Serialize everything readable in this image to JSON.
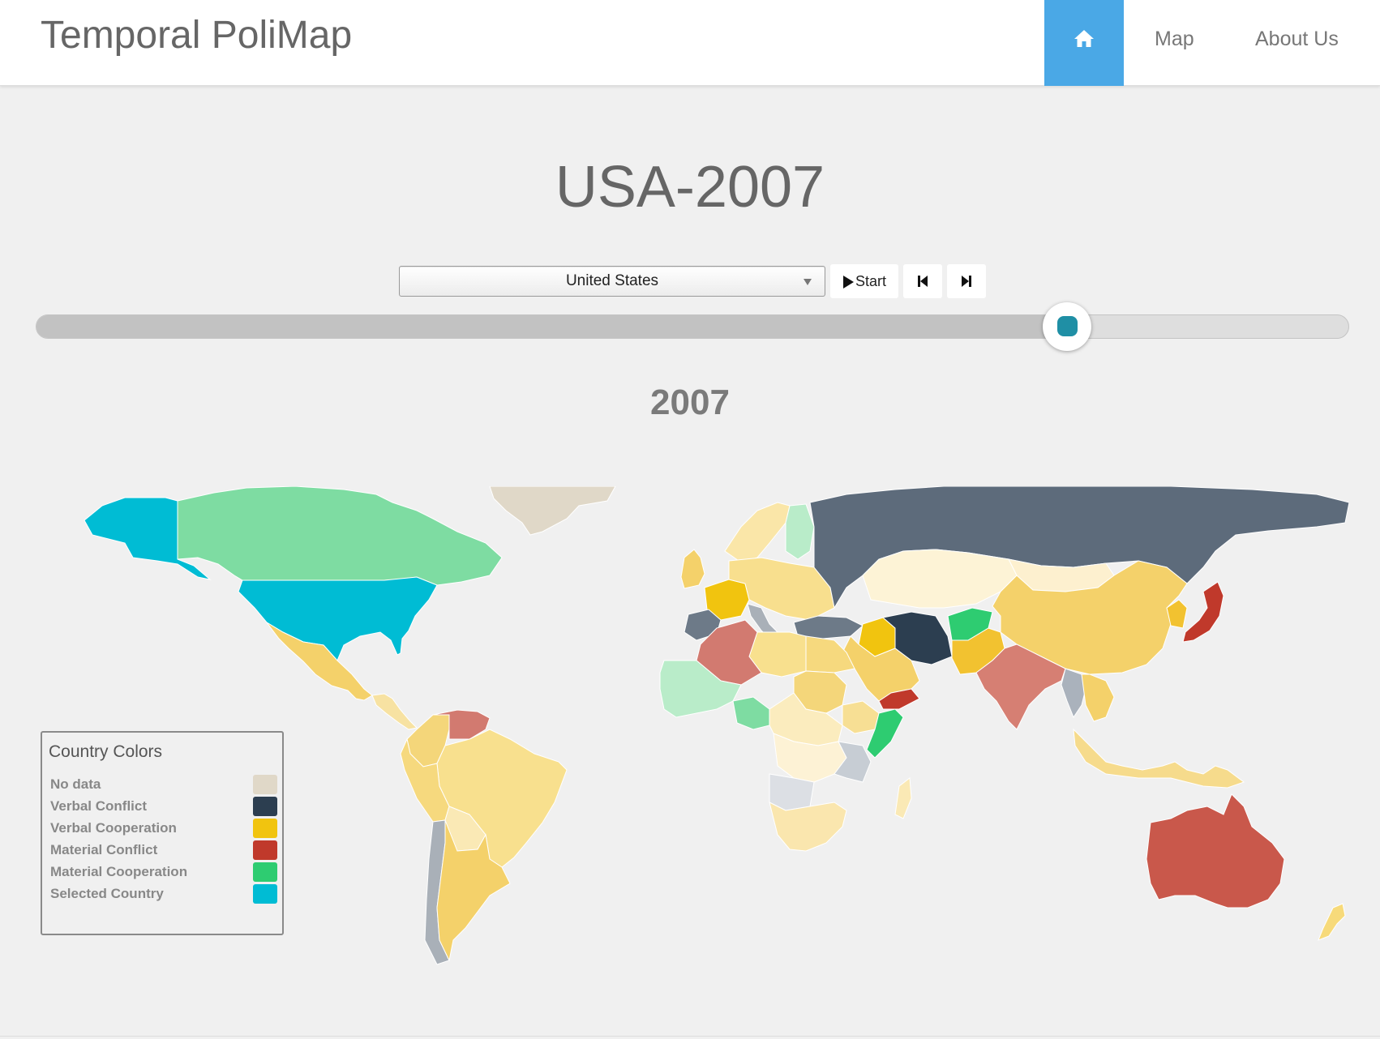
{
  "app": {
    "brand": "Temporal PoliMap",
    "nav": {
      "home_icon": "home-icon",
      "map": "Map",
      "about": "About Us"
    }
  },
  "header": {
    "title": "USA-2007"
  },
  "controls": {
    "country_select": {
      "selected": "United States"
    },
    "start_label": "Start",
    "prev_icon": "step-back-icon",
    "next_icon": "step-forward-icon",
    "timeline_progress": 0.785
  },
  "year": "2007",
  "legend": {
    "title": "Country Colors",
    "items": [
      {
        "label": "No data",
        "color": "#e0d8c8"
      },
      {
        "label": "Verbal Conflict",
        "color": "#2c3e50"
      },
      {
        "label": "Verbal Cooperation",
        "color": "#f1c40f"
      },
      {
        "label": "Material Conflict",
        "color": "#c0392b"
      },
      {
        "label": "Material Cooperation",
        "color": "#2ecc71"
      },
      {
        "label": "Selected Country",
        "color": "#00bcd4"
      }
    ]
  },
  "map": {
    "regions": [
      {
        "name": "United States",
        "category": "Selected Country",
        "color": "#00bcd4"
      },
      {
        "name": "Alaska",
        "category": "Selected Country",
        "color": "#00bcd4"
      },
      {
        "name": "Canada",
        "category": "Material Cooperation",
        "color": "#7edca2"
      },
      {
        "name": "Greenland",
        "category": "No data",
        "color": "#e0d8c8"
      },
      {
        "name": "Mexico",
        "category": "Verbal Cooperation",
        "color": "#f4d16a"
      },
      {
        "name": "Central America",
        "category": "Verbal Cooperation",
        "color": "#f7e2a2"
      },
      {
        "name": "Venezuela",
        "category": "Material Conflict",
        "color": "#d27a70"
      },
      {
        "name": "Colombia",
        "category": "Verbal Cooperation",
        "color": "#f4d67a"
      },
      {
        "name": "Brazil",
        "category": "Verbal Cooperation",
        "color": "#f8e08e"
      },
      {
        "name": "Peru",
        "category": "Verbal Cooperation",
        "color": "#f6d97e"
      },
      {
        "name": "Bolivia",
        "category": "Verbal Cooperation",
        "color": "#fae9b5"
      },
      {
        "name": "Chile",
        "category": "Verbal Conflict",
        "color": "#a9b0b8"
      },
      {
        "name": "Argentina",
        "category": "Verbal Cooperation",
        "color": "#f4d16a"
      },
      {
        "name": "Russia",
        "category": "Verbal Conflict",
        "color": "#5d6b7b"
      },
      {
        "name": "China",
        "category": "Verbal Cooperation",
        "color": "#f4d16a"
      },
      {
        "name": "Mongolia",
        "category": "Verbal Cooperation",
        "color": "#fdf0cf"
      },
      {
        "name": "Kazakhstan",
        "category": "Verbal Cooperation",
        "color": "#fdf3d6"
      },
      {
        "name": "Iran",
        "category": "Verbal Conflict",
        "color": "#2c3e50"
      },
      {
        "name": "Afghanistan",
        "category": "Material Cooperation",
        "color": "#2ecc71"
      },
      {
        "name": "Pakistan",
        "category": "Verbal Cooperation",
        "color": "#f2c230"
      },
      {
        "name": "India",
        "category": "Material Conflict",
        "color": "#d67f73"
      },
      {
        "name": "Myanmar",
        "category": "Verbal Conflict",
        "color": "#aab2bc"
      },
      {
        "name": "Southeast Asia",
        "category": "Verbal Cooperation",
        "color": "#f4d16a"
      },
      {
        "name": "Indonesia",
        "category": "Verbal Cooperation",
        "color": "#f6db8c"
      },
      {
        "name": "Japan",
        "category": "Material Conflict",
        "color": "#c0392b"
      },
      {
        "name": "Korea",
        "category": "Verbal Cooperation",
        "color": "#f2c230"
      },
      {
        "name": "Australia",
        "category": "Material Conflict",
        "color": "#c9584b"
      },
      {
        "name": "New Zealand",
        "category": "Verbal Cooperation",
        "color": "#f7da7a"
      },
      {
        "name": "Saudi Arabia",
        "category": "Verbal Cooperation",
        "color": "#f4d16a"
      },
      {
        "name": "Iraq",
        "category": "Verbal Cooperation",
        "color": "#f1c40f"
      },
      {
        "name": "Yemen",
        "category": "Material Conflict",
        "color": "#c0392b"
      },
      {
        "name": "Turkey",
        "category": "Verbal Conflict",
        "color": "#6d7a88"
      },
      {
        "name": "Algeria",
        "category": "Material Conflict",
        "color": "#d27a70"
      },
      {
        "name": "Libya",
        "category": "Verbal Cooperation",
        "color": "#f8e08e"
      },
      {
        "name": "Egypt",
        "category": "Verbal Cooperation",
        "color": "#f6d97e"
      },
      {
        "name": "West Africa",
        "category": "Material Cooperation",
        "color": "#b9ecc9"
      },
      {
        "name": "Nigeria",
        "category": "Material Cooperation",
        "color": "#7edca2"
      },
      {
        "name": "Sudan",
        "category": "Verbal Cooperation",
        "color": "#f4d67a"
      },
      {
        "name": "Ethiopia",
        "category": "Verbal Cooperation",
        "color": "#f7df94"
      },
      {
        "name": "Somalia",
        "category": "Material Cooperation",
        "color": "#2ecc71"
      },
      {
        "name": "Central Africa",
        "category": "Verbal Cooperation",
        "color": "#fbecbe"
      },
      {
        "name": "DR Congo",
        "category": "Verbal Cooperation",
        "color": "#fdf2d5"
      },
      {
        "name": "Angola",
        "category": "Verbal Conflict",
        "color": "#dcdfe4"
      },
      {
        "name": "Tanzania",
        "category": "Verbal Conflict",
        "color": "#c7cdd4"
      },
      {
        "name": "Southern Africa",
        "category": "Verbal Cooperation",
        "color": "#fae6ae"
      },
      {
        "name": "Madagascar",
        "category": "Verbal Cooperation",
        "color": "#fae9b5"
      },
      {
        "name": "Spain",
        "category": "Verbal Conflict",
        "color": "#6d7a88"
      },
      {
        "name": "France",
        "category": "Verbal Cooperation",
        "color": "#f1c40f"
      },
      {
        "name": "United Kingdom",
        "category": "Verbal Cooperation",
        "color": "#f4d16a"
      },
      {
        "name": "Europe",
        "category": "Verbal Cooperation",
        "color": "#f8df8e"
      },
      {
        "name": "Scandinavia",
        "category": "Verbal Cooperation",
        "color": "#fae6a8"
      },
      {
        "name": "Finland",
        "category": "Material Cooperation",
        "color": "#b9ecc9"
      },
      {
        "name": "Italy",
        "category": "Verbal Conflict",
        "color": "#a9b0b8"
      }
    ]
  }
}
